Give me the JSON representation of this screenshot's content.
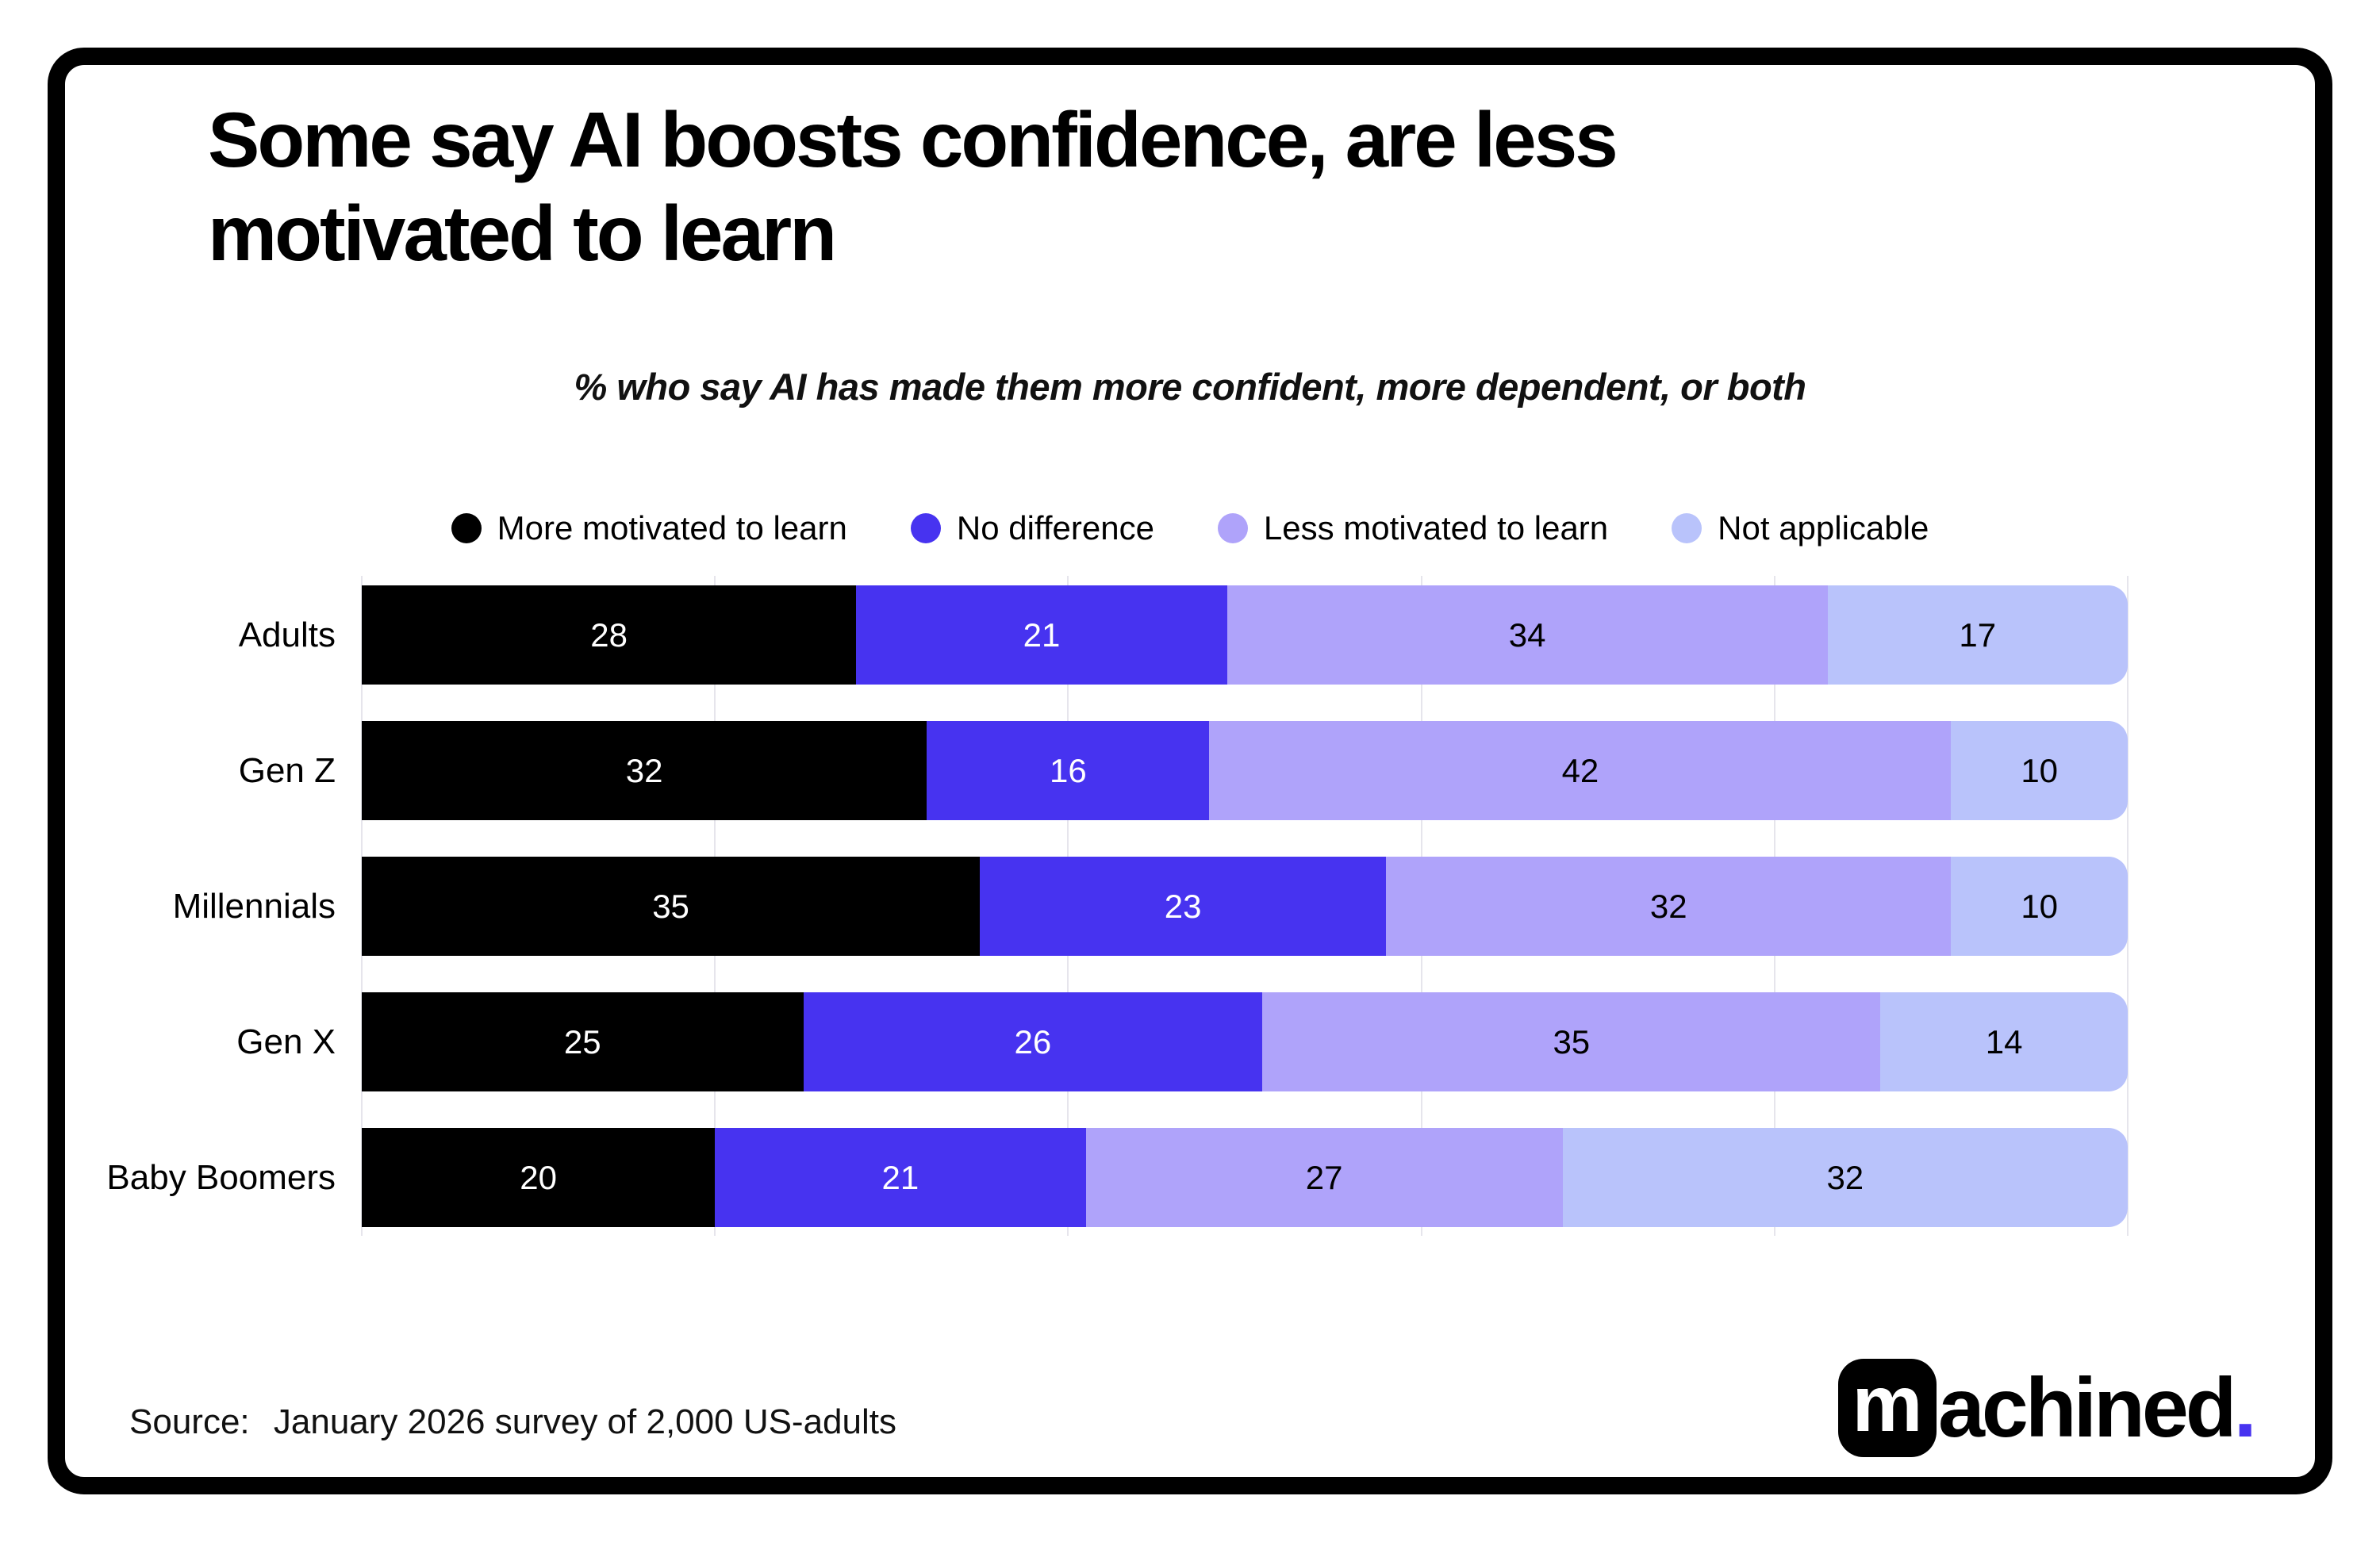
{
  "header": {
    "title_lines": [
      "Some say AI boosts confidence, are less",
      "motivated to learn"
    ],
    "subtitle": "% who say AI has made them more confident, more dependent, or both"
  },
  "chart_data": {
    "type": "bar",
    "orientation": "horizontal",
    "stacked": true,
    "categories": [
      "Adults",
      "Gen Z",
      "Millennials",
      "Gen X",
      "Baby Boomers"
    ],
    "series": [
      {
        "name": "More motivated to learn",
        "color": "#000000",
        "text_color": "#ffffff",
        "values": [
          28,
          32,
          35,
          25,
          20
        ]
      },
      {
        "name": "No difference",
        "color": "#4733f0",
        "text_color": "#ffffff",
        "values": [
          21,
          16,
          23,
          26,
          21
        ]
      },
      {
        "name": "Less motivated to learn",
        "color": "#afa3fa",
        "text_color": "#000000",
        "values": [
          34,
          42,
          32,
          35,
          27
        ]
      },
      {
        "name": "Not applicable",
        "color": "#b9c3fb",
        "text_color": "#000000",
        "values": [
          17,
          10,
          10,
          14,
          32
        ]
      }
    ],
    "x_range": [
      0,
      100
    ],
    "gridlines_pct": [
      0,
      20,
      40,
      60,
      80,
      100
    ],
    "value_unit": "%",
    "legend_position": "top-center",
    "grid": true
  },
  "footer": {
    "source_label": "Source:",
    "source_text": "January 2026 survey of 2,000 US-adults"
  },
  "logo": {
    "box_letter": "m",
    "wordmark_rest": "achined",
    "dot": ".",
    "dot_color": "#4733f0"
  },
  "colors": {
    "card_border": "#000000",
    "background": "#ffffff",
    "gridline": "#e6e5ec",
    "accent_blue": "#4733f0",
    "purple": "#afa3fa",
    "lavender": "#b9c3fb"
  }
}
